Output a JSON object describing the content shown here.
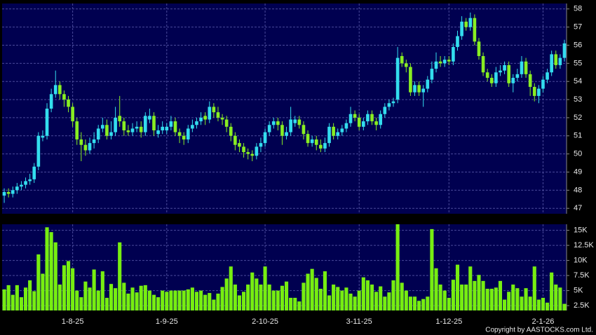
{
  "chart_data": {
    "type": "candlestick",
    "categories": [
      null,
      null,
      null,
      null,
      null,
      null,
      null,
      null,
      null,
      null,
      null,
      null,
      null,
      null,
      null,
      null,
      "1-8-25",
      null,
      null,
      null,
      null,
      null,
      null,
      null,
      null,
      null,
      null,
      null,
      null,
      null,
      null,
      null,
      null,
      null,
      null,
      null,
      null,
      null,
      "1-9-25",
      null,
      null,
      null,
      null,
      null,
      null,
      null,
      null,
      null,
      null,
      null,
      null,
      null,
      null,
      null,
      null,
      null,
      null,
      null,
      null,
      null,
      null,
      "2-10-25",
      null,
      null,
      null,
      null,
      null,
      null,
      null,
      null,
      null,
      null,
      null,
      null,
      null,
      null,
      null,
      null,
      null,
      null,
      null,
      null,
      null,
      "3-11-25",
      null,
      null,
      null,
      null,
      null,
      null,
      null,
      null,
      null,
      null,
      null,
      null,
      null,
      null,
      null,
      null,
      null,
      null,
      null,
      null,
      "1-12-25",
      null,
      null,
      null,
      null,
      null,
      null,
      null,
      null,
      null,
      null,
      null,
      null,
      null,
      null,
      null,
      null,
      null,
      null,
      null,
      null,
      null,
      "2-1-26",
      null,
      null,
      null,
      null,
      null
    ],
    "open": [
      47.7,
      47.9,
      47.8,
      48.0,
      48.2,
      48.3,
      48.5,
      48.6,
      49.3,
      50.9,
      51.0,
      52.5,
      53.3,
      53.8,
      53.3,
      53.0,
      52.6,
      51.8,
      50.8,
      50.5,
      50.2,
      50.6,
      50.8,
      51.4,
      51.6,
      51.0,
      51.2,
      52.1,
      51.8,
      51.3,
      51.2,
      51.4,
      51.5,
      51.2,
      51.9,
      52.1,
      51.1,
      51.3,
      51.3,
      51.5,
      51.8,
      51.2,
      51.0,
      50.8,
      51.4,
      51.6,
      51.8,
      52.1,
      51.9,
      52.6,
      52.3,
      52.0,
      51.9,
      51.5,
      51.0,
      50.6,
      50.4,
      50.1,
      50.0,
      49.9,
      50.4,
      50.6,
      51.2,
      51.6,
      51.8,
      51.6,
      51.0,
      51.2,
      51.7,
      51.9,
      51.6,
      51.1,
      50.6,
      50.8,
      50.5,
      50.3,
      50.6,
      51.5,
      51.0,
      51.2,
      51.4,
      51.7,
      52.2,
      52.0,
      51.5,
      51.8,
      52.2,
      51.8,
      51.6,
      52.2,
      52.6,
      52.8,
      53.0,
      55.4,
      55.0,
      54.8,
      53.4,
      53.8,
      53.4,
      53.6,
      54.1,
      54.7,
      55.1,
      55.0,
      55.2,
      55.1,
      55.9,
      56.5,
      57.3,
      57.0,
      57.5,
      56.2,
      55.4,
      54.5,
      54.2,
      53.9,
      54.5,
      54.6,
      54.9,
      53.9,
      54.2,
      54.4,
      55.1,
      54.4,
      53.7,
      53.2,
      53.6,
      54.1,
      54.5,
      55.5,
      54.9,
      55.3
    ],
    "high": [
      48.1,
      48.1,
      48.2,
      48.4,
      48.5,
      48.7,
      48.9,
      49.5,
      51.2,
      51.3,
      52.8,
      53.6,
      54.6,
      54.0,
      53.5,
      53.2,
      52.8,
      52.0,
      51.2,
      50.8,
      50.9,
      51.2,
      51.6,
      52.0,
      51.9,
      51.8,
      52.6,
      53.2,
      52.0,
      51.6,
      51.7,
      51.8,
      51.8,
      52.3,
      52.5,
      52.3,
      51.6,
      51.8,
      51.7,
      52.1,
      52.0,
      51.4,
      51.2,
      51.6,
      51.9,
      52.0,
      52.3,
      52.3,
      52.9,
      52.8,
      52.6,
      52.2,
      52.1,
      51.7,
      51.2,
      50.8,
      50.6,
      50.3,
      50.2,
      50.6,
      50.9,
      51.4,
      51.8,
      52.0,
      52.0,
      51.8,
      51.5,
      52.6,
      52.1,
      52.1,
      51.8,
      51.3,
      51.0,
      51.0,
      50.8,
      50.9,
      51.7,
      51.7,
      51.4,
      51.6,
      51.9,
      52.6,
      52.4,
      52.2,
      52.0,
      52.4,
      52.4,
      52.0,
      52.4,
      52.8,
      53.0,
      53.1,
      55.9,
      55.6,
      55.2,
      55.0,
      54.0,
      54.0,
      53.8,
      54.3,
      55.1,
      55.6,
      55.4,
      55.4,
      55.4,
      56.1,
      56.8,
      57.6,
      57.5,
      57.8,
      57.7,
      56.4,
      55.6,
      54.7,
      54.4,
      54.8,
      54.9,
      55.1,
      55.1,
      54.4,
      54.7,
      55.4,
      55.3,
      54.6,
      53.9,
      53.8,
      54.3,
      54.7,
      55.7,
      55.7,
      55.5,
      56.3
    ],
    "low": [
      47.3,
      47.6,
      47.6,
      47.8,
      48.0,
      48.1,
      48.3,
      48.4,
      49.1,
      50.7,
      50.8,
      52.3,
      53.1,
      53.0,
      52.6,
      52.3,
      51.5,
      50.5,
      49.6,
      49.9,
      50.0,
      50.3,
      50.6,
      51.2,
      50.8,
      50.8,
      51.0,
      51.5,
      51.0,
      51.0,
      51.0,
      51.2,
      50.9,
      51.0,
      51.7,
      51.0,
      50.9,
      51.1,
      51.1,
      51.3,
      51.0,
      50.6,
      50.5,
      50.6,
      51.2,
      51.4,
      51.6,
      51.6,
      51.7,
      52.0,
      51.8,
      51.6,
      51.2,
      50.7,
      50.2,
      50.1,
      49.8,
      49.7,
      49.6,
      49.7,
      50.1,
      50.4,
      51.0,
      51.4,
      51.3,
      50.5,
      50.8,
      51.0,
      51.5,
      51.4,
      50.8,
      50.4,
      50.4,
      50.2,
      50.1,
      50.1,
      50.4,
      50.8,
      50.8,
      51.0,
      51.2,
      51.5,
      51.8,
      51.3,
      51.3,
      51.6,
      51.6,
      51.3,
      51.4,
      52.0,
      52.4,
      52.6,
      52.8,
      54.8,
      54.5,
      53.2,
      53.2,
      53.2,
      52.6,
      53.4,
      53.9,
      54.5,
      54.8,
      54.8,
      54.9,
      54.9,
      55.7,
      56.3,
      56.8,
      56.8,
      56.0,
      55.2,
      54.3,
      54.0,
      53.7,
      53.7,
      54.3,
      54.4,
      53.7,
      53.4,
      54.0,
      54.2,
      54.2,
      53.2,
      52.9,
      52.8,
      53.4,
      53.9,
      54.3,
      54.7,
      54.7,
      55.1
    ],
    "close": [
      47.9,
      47.8,
      48.0,
      48.2,
      48.3,
      48.5,
      48.6,
      49.3,
      51.0,
      51.0,
      52.5,
      53.3,
      53.8,
      53.3,
      53.0,
      52.6,
      51.8,
      50.8,
      50.5,
      50.2,
      50.6,
      50.8,
      51.4,
      51.6,
      51.0,
      51.2,
      52.0,
      51.8,
      51.3,
      51.2,
      51.4,
      51.5,
      51.2,
      52.1,
      52.1,
      51.3,
      51.3,
      51.5,
      51.5,
      51.8,
      51.2,
      51.0,
      50.8,
      51.4,
      51.6,
      51.8,
      52.0,
      51.9,
      52.6,
      52.3,
      52.0,
      51.9,
      51.5,
      51.0,
      50.5,
      50.4,
      50.1,
      50.0,
      49.9,
      50.4,
      50.6,
      51.2,
      51.6,
      51.8,
      51.6,
      51.0,
      51.2,
      51.9,
      51.9,
      51.6,
      51.1,
      50.6,
      50.8,
      50.5,
      50.3,
      50.6,
      51.5,
      51.0,
      51.2,
      51.4,
      51.7,
      52.2,
      52.0,
      51.5,
      51.8,
      52.2,
      51.8,
      51.6,
      52.2,
      52.6,
      52.8,
      52.9,
      55.3,
      55.0,
      54.8,
      53.4,
      53.8,
      53.4,
      53.6,
      54.1,
      54.7,
      55.1,
      55.0,
      55.2,
      55.1,
      55.9,
      56.5,
      57.3,
      57.0,
      57.5,
      56.2,
      55.4,
      54.5,
      54.2,
      53.9,
      54.5,
      54.6,
      54.9,
      53.9,
      54.2,
      54.4,
      55.1,
      54.4,
      53.7,
      53.2,
      53.6,
      54.1,
      54.5,
      55.5,
      54.9,
      55.3,
      56.1
    ],
    "volume": [
      5200,
      5900,
      4300,
      5900,
      3900,
      5500,
      6700,
      4900,
      11000,
      7800,
      15500,
      14700,
      13000,
      6000,
      9200,
      9900,
      8700,
      5000,
      3900,
      6500,
      5500,
      8500,
      5000,
      8200,
      3800,
      6100,
      5400,
      13000,
      6300,
      4500,
      5500,
      4700,
      5800,
      5900,
      5000,
      4300,
      3900,
      5000,
      4800,
      5000,
      5000,
      5000,
      5000,
      5200,
      5500,
      4800,
      5000,
      4300,
      4600,
      3500,
      4500,
      5600,
      7000,
      9000,
      6000,
      4200,
      4800,
      6000,
      8000,
      7000,
      6000,
      9000,
      6000,
      5000,
      5000,
      5800,
      6500,
      3800,
      3800,
      3200,
      6300,
      7800,
      8600,
      7100,
      5300,
      8200,
      4200,
      6000,
      5600,
      5000,
      5500,
      4500,
      4000,
      5000,
      7200,
      6700,
      6000,
      4800,
      5700,
      4000,
      4700,
      6700,
      16000,
      6300,
      5000,
      4000,
      4000,
      3300,
      3600,
      4000,
      15200,
      8700,
      6000,
      5000,
      3800,
      6800,
      9300,
      6000,
      6000,
      9000,
      6600,
      7600,
      6600,
      5300,
      5300,
      5500,
      6600,
      3500,
      4800,
      6000,
      5400,
      4000,
      5400,
      4000,
      9000,
      3500,
      3800,
      3000,
      8000,
      6000,
      5500,
      2800
    ],
    "up_color": "#33ddee",
    "down_color": "#88ee22",
    "volume_color": "#77ee11",
    "ylim": [
      46.7,
      58.3
    ],
    "yticks": [
      47,
      48,
      49,
      50,
      51,
      52,
      53,
      54,
      55,
      56,
      57,
      58
    ],
    "volume_ylim": [
      1700,
      16000
    ],
    "volume_yticks": [
      {
        "value": 2500,
        "label": "2.5K"
      },
      {
        "value": 5000,
        "label": "5K"
      },
      {
        "value": 7500,
        "label": "7.5K"
      },
      {
        "value": 10000,
        "label": "10K"
      },
      {
        "value": 12500,
        "label": "12.5K"
      },
      {
        "value": 15000,
        "label": "15K"
      }
    ],
    "grid": true,
    "copyright": "Copyright by AASTOCKS.com Ltd."
  }
}
